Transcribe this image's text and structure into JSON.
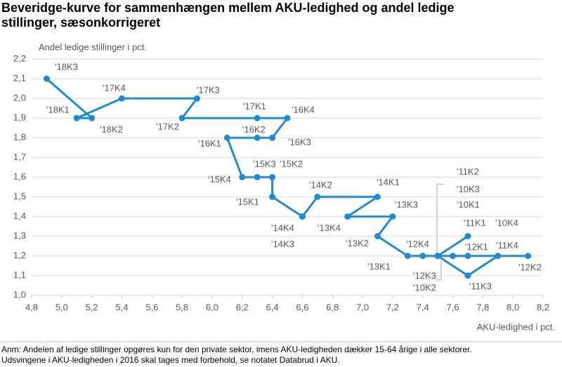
{
  "chart_data": {
    "type": "connected-scatter",
    "title": [
      "Beveridge-kurve for sammenhængen mellem AKU-ledighed og andel ledige",
      "stillinger, sæsonkorrigeret"
    ],
    "ylabel": "Andel ledige stillinger i pct.",
    "xlabel": "AKU-ledighed i pct.",
    "note": [
      "Anm: Andelen af ledige stillinger opgøres kun for den private sektor, imens AKU-ledigheden dækker 15-64 årige i alle sektorer.",
      "Udsvingene i AKU-ledigheden i 2016 skal tages med forbehold, se notatet Databrud i AKU."
    ],
    "point_labels": [
      "'10K1",
      "'10K2",
      "'10K3",
      "'10K4",
      "'11K1",
      "'11K2",
      "'11K3",
      "'11K4",
      "'12K1",
      "'12K2",
      "'12K3",
      "'12K4",
      "'13K1",
      "'13K2",
      "'13K3",
      "'13K4",
      "'14K1",
      "'14K2",
      "'14K3",
      "'14K4",
      "'15K1",
      "'15K2",
      "'15K3",
      "'15K4",
      "'16K1",
      "'16K2",
      "'16K3",
      "'16K4",
      "'17K1",
      "'17K2",
      "'17K3",
      "'17K4",
      "'18K1",
      "'18K2",
      "'18K3"
    ],
    "x": [
      7.5,
      7.5,
      7.5,
      7.7,
      7.7,
      7.5,
      7.7,
      7.9,
      7.7,
      8.1,
      7.6,
      7.4,
      7.3,
      7.1,
      7.2,
      6.9,
      7.1,
      6.7,
      6.6,
      6.6,
      6.4,
      6.4,
      6.3,
      6.2,
      6.1,
      6.3,
      6.4,
      6.5,
      6.3,
      5.8,
      5.9,
      5.4,
      5.1,
      5.2,
      4.9
    ],
    "series": [
      {
        "color": "#1f8ad0",
        "values": [
          1.2,
          1.2,
          1.2,
          1.3,
          1.3,
          1.2,
          1.1,
          1.2,
          1.2,
          1.2,
          1.2,
          1.2,
          1.2,
          1.3,
          1.4,
          1.4,
          1.5,
          1.5,
          1.4,
          1.4,
          1.5,
          1.6,
          1.6,
          1.6,
          1.8,
          1.8,
          1.8,
          1.9,
          1.9,
          1.9,
          2.0,
          2.0,
          1.9,
          1.9,
          2.1
        ]
      }
    ],
    "xlim": [
      4.8,
      8.2
    ],
    "xticks": [
      {
        "value": 4.8,
        "label": "4,8"
      },
      {
        "value": 5.0,
        "label": "5,0"
      },
      {
        "value": 5.2,
        "label": "5,2"
      },
      {
        "value": 5.4,
        "label": "5,4"
      },
      {
        "value": 5.6,
        "label": "5,6"
      },
      {
        "value": 5.8,
        "label": "5,8"
      },
      {
        "value": 6.0,
        "label": "6,0"
      },
      {
        "value": 6.2,
        "label": "6,2"
      },
      {
        "value": 6.4,
        "label": "6,4"
      },
      {
        "value": 6.6,
        "label": "6,6"
      },
      {
        "value": 6.8,
        "label": "6,8"
      },
      {
        "value": 7.0,
        "label": "7,0"
      },
      {
        "value": 7.2,
        "label": "7,2"
      },
      {
        "value": 7.4,
        "label": "7,4"
      },
      {
        "value": 7.6,
        "label": "7,6"
      },
      {
        "value": 7.8,
        "label": "7,8"
      },
      {
        "value": 8.0,
        "label": "8,0"
      },
      {
        "value": 8.2,
        "label": "8,2"
      }
    ],
    "ylim": [
      1.0,
      2.2
    ],
    "yticks": [
      {
        "value": 1.0,
        "label": "1,0"
      },
      {
        "value": 1.1,
        "label": "1,1"
      },
      {
        "value": 1.2,
        "label": "1,2"
      },
      {
        "value": 1.3,
        "label": "1,3"
      },
      {
        "value": 1.4,
        "label": "1,4"
      },
      {
        "value": 1.5,
        "label": "1,5"
      },
      {
        "value": 1.6,
        "label": "1,6"
      },
      {
        "value": 1.7,
        "label": "1,7"
      },
      {
        "value": 1.8,
        "label": "1,8"
      },
      {
        "value": 1.9,
        "label": "1,9"
      },
      {
        "value": 2.0,
        "label": "2,0"
      },
      {
        "value": 2.1,
        "label": "2,1"
      },
      {
        "value": 2.2,
        "label": "2,2"
      }
    ],
    "grid": true
  }
}
